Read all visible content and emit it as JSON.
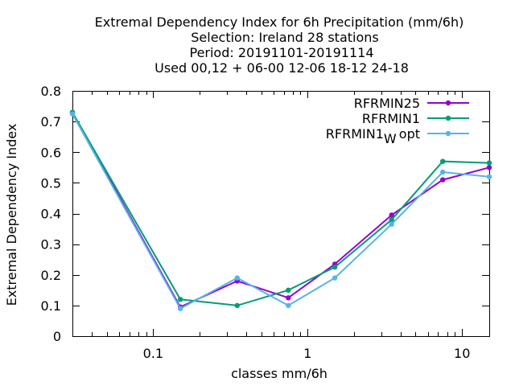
{
  "chart_data": {
    "type": "line",
    "title_lines": [
      "Extremal Dependency Index  for 6h Precipitation (mm/6h)",
      "Selection: Ireland      28 stations",
      "Period: 20191101-20191114",
      "Used  00,12  + 06-00 12-06 18-12 24-18"
    ],
    "xlabel": "classes mm/6h",
    "ylabel": "Extremal Dependency Index",
    "x_scale": "log",
    "xlim": [
      0.03,
      15
    ],
    "ylim": [
      0,
      0.8
    ],
    "x_ticks": [
      {
        "value": 0.1,
        "label": "0.1"
      },
      {
        "value": 1,
        "label": "1"
      },
      {
        "value": 10,
        "label": "10"
      }
    ],
    "y_ticks": [
      {
        "value": 0,
        "label": "0"
      },
      {
        "value": 0.1,
        "label": "0.1"
      },
      {
        "value": 0.2,
        "label": "0.2"
      },
      {
        "value": 0.3,
        "label": "0.3"
      },
      {
        "value": 0.4,
        "label": "0.4"
      },
      {
        "value": 0.5,
        "label": "0.5"
      },
      {
        "value": 0.6,
        "label": "0.6"
      },
      {
        "value": 0.7,
        "label": "0.7"
      },
      {
        "value": 0.8,
        "label": "0.8"
      }
    ],
    "x": [
      0.03,
      0.15,
      0.35,
      0.75,
      1.5,
      3.5,
      7.5,
      15
    ],
    "series": [
      {
        "name": "RFRMIN25",
        "name_sub": "",
        "name_suffix": "",
        "color": "#9400d3",
        "values": [
          0.73,
          0.095,
          0.18,
          0.125,
          0.235,
          0.395,
          0.51,
          0.55
        ]
      },
      {
        "name": "RFRMIN1",
        "name_sub": "",
        "name_suffix": "",
        "color": "#009e73",
        "values": [
          0.73,
          0.12,
          0.1,
          0.15,
          0.225,
          0.38,
          0.57,
          0.565
        ]
      },
      {
        "name": "RFRMIN1",
        "name_sub": "W",
        "name_suffix": "opt",
        "color": "#56b4e9",
        "values": [
          0.725,
          0.09,
          0.19,
          0.1,
          0.19,
          0.365,
          0.535,
          0.52
        ]
      }
    ],
    "grid": false,
    "legend_position": "top-right"
  }
}
